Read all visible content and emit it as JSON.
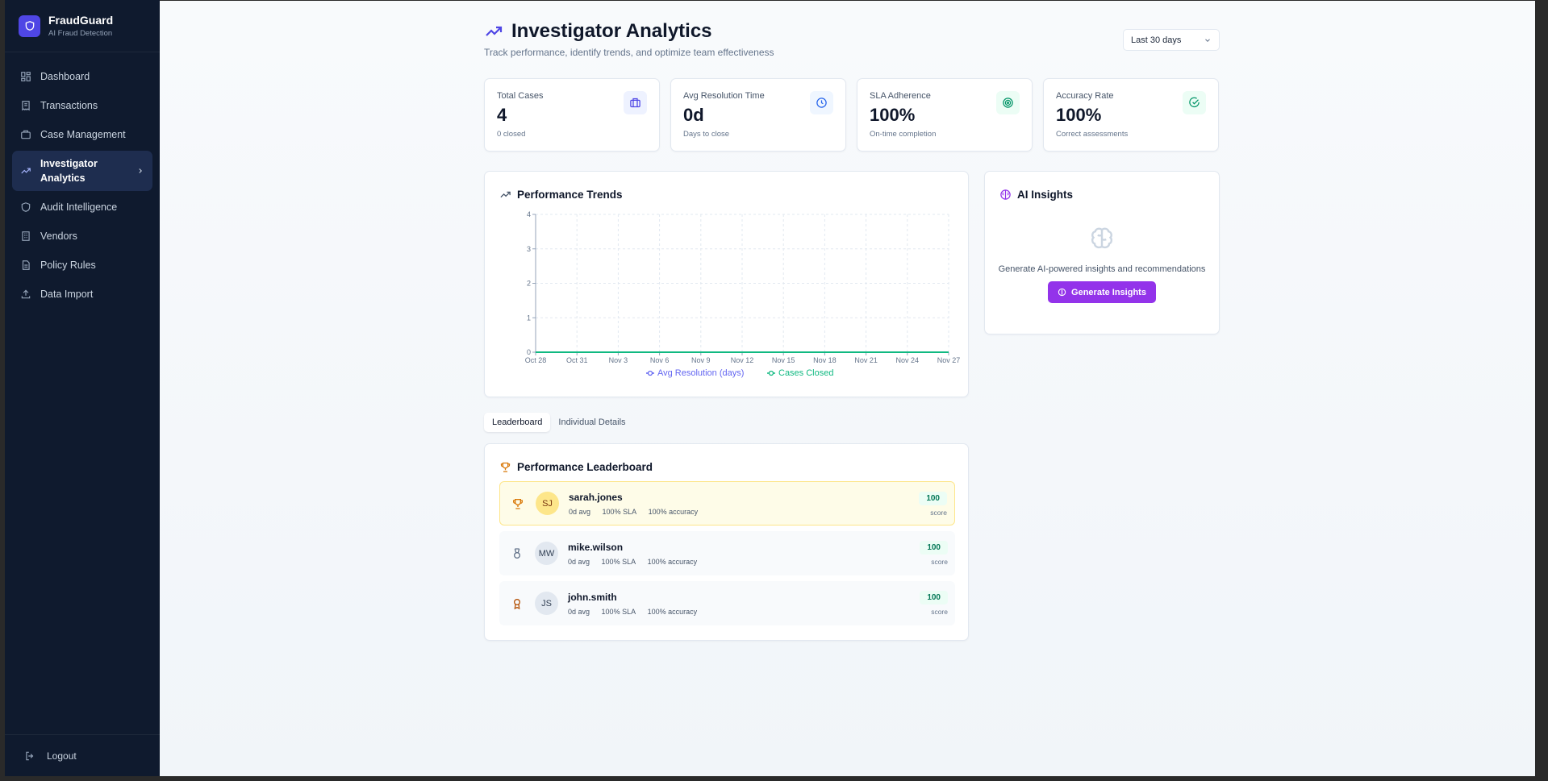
{
  "brand": {
    "title": "FraudGuard",
    "subtitle": "AI Fraud Detection"
  },
  "sidebar": {
    "items": [
      {
        "label": "Dashboard",
        "icon": "grid-icon"
      },
      {
        "label": "Transactions",
        "icon": "receipt-icon"
      },
      {
        "label": "Case Management",
        "icon": "briefcase-icon"
      },
      {
        "label": "Investigator Analytics",
        "icon": "trending-up-icon",
        "active": true
      },
      {
        "label": "Audit Intelligence",
        "icon": "shield-icon"
      },
      {
        "label": "Vendors",
        "icon": "building-icon"
      },
      {
        "label": "Policy Rules",
        "icon": "document-icon"
      },
      {
        "label": "Data Import",
        "icon": "upload-icon"
      }
    ],
    "logout_label": "Logout"
  },
  "header": {
    "title": "Investigator Analytics",
    "subtitle": "Track performance, identify trends, and optimize team effectiveness",
    "range_selected": "Last 30 days"
  },
  "stats": [
    {
      "label": "Total Cases",
      "value": "4",
      "note": "0 closed",
      "icon": "briefcase-icon",
      "icon_color": "#4f46e5",
      "icon_bg": "#eef2ff"
    },
    {
      "label": "Avg Resolution Time",
      "value": "0d",
      "note": "Days to close",
      "icon": "clock-icon",
      "icon_color": "#2563eb",
      "icon_bg": "#eff6ff"
    },
    {
      "label": "SLA Adherence",
      "value": "100%",
      "note": "On-time completion",
      "icon": "target-icon",
      "icon_color": "#059669",
      "icon_bg": "#ecfdf5"
    },
    {
      "label": "Accuracy Rate",
      "value": "100%",
      "note": "Correct assessments",
      "icon": "check-circle-icon",
      "icon_color": "#059669",
      "icon_bg": "#ecfdf5"
    }
  ],
  "trends": {
    "title": "Performance Trends",
    "chart_data": {
      "type": "line",
      "x": [
        "Oct 28",
        "Oct 31",
        "Nov 3",
        "Nov 6",
        "Nov 9",
        "Nov 12",
        "Nov 15",
        "Nov 18",
        "Nov 21",
        "Nov 24",
        "Nov 27"
      ],
      "yticks": [
        0,
        1,
        2,
        3,
        4
      ],
      "ylim": [
        0,
        4
      ],
      "grid": true,
      "legend_position": "bottom",
      "series": [
        {
          "name": "Avg Resolution (days)",
          "color": "#6366f1",
          "values": [
            0,
            0,
            0,
            0,
            0,
            0,
            0,
            0,
            0,
            0,
            0
          ]
        },
        {
          "name": "Cases Closed",
          "color": "#10b981",
          "values": [
            0,
            0,
            0,
            0,
            0,
            0,
            0,
            0,
            0,
            0,
            0
          ]
        }
      ]
    }
  },
  "insights": {
    "title": "AI Insights",
    "text": "Generate AI-powered insights and recommendations",
    "button_label": "Generate Insights"
  },
  "tabs": [
    {
      "label": "Leaderboard",
      "active": true
    },
    {
      "label": "Individual Details",
      "active": false
    }
  ],
  "leaderboard": {
    "title": "Performance Leaderboard",
    "rows": [
      {
        "initials": "SJ",
        "name": "sarah.jones",
        "avg": "0d avg",
        "sla": "100% SLA",
        "accuracy": "100% accuracy",
        "score": "100",
        "score_label": "score",
        "rank_icon": "trophy-icon"
      },
      {
        "initials": "MW",
        "name": "mike.wilson",
        "avg": "0d avg",
        "sla": "100% SLA",
        "accuracy": "100% accuracy",
        "score": "100",
        "score_label": "score",
        "rank_icon": "medal-icon"
      },
      {
        "initials": "JS",
        "name": "john.smith",
        "avg": "0d avg",
        "sla": "100% SLA",
        "accuracy": "100% accuracy",
        "score": "100",
        "score_label": "score",
        "rank_icon": "award-icon"
      }
    ]
  }
}
